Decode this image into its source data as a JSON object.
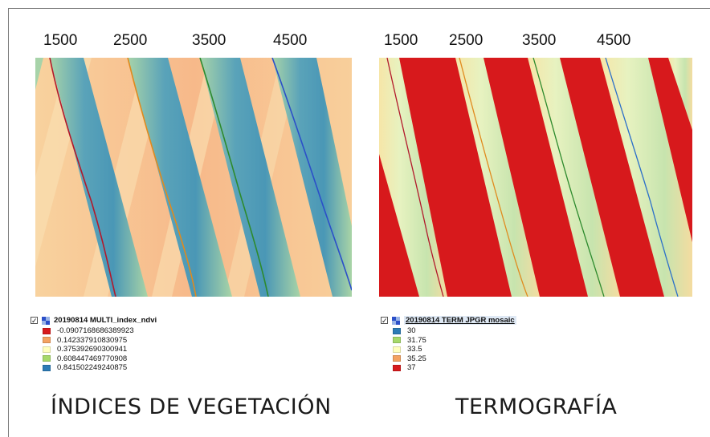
{
  "left_panel": {
    "ticks": [
      "1500",
      "2500",
      "3500",
      "4500"
    ],
    "legend": {
      "checked": "✓",
      "layer_name": "20190814 MULTI_index_ndvi",
      "items": [
        {
          "color": "#d7191c",
          "label": "-0.0907168686389923"
        },
        {
          "color": "#f4a261",
          "label": "0.142337910830975"
        },
        {
          "color": "#ffffbf",
          "label": "0.375392690300941"
        },
        {
          "color": "#a6d96a",
          "label": "0.608447469770908"
        },
        {
          "color": "#2c7bb6",
          "label": "0.841502249240875"
        }
      ]
    },
    "caption": "ÍNDICES DE VEGETACIÓN"
  },
  "right_panel": {
    "ticks": [
      "1500",
      "2500",
      "3500",
      "4500"
    ],
    "legend": {
      "checked": "✓",
      "layer_name": "20190814 TERM JPGR mosaic",
      "items": [
        {
          "color": "#2c7bb6",
          "label": "30"
        },
        {
          "color": "#a6d96a",
          "label": "31.75"
        },
        {
          "color": "#ffffbf",
          "label": "33.5"
        },
        {
          "color": "#f4a261",
          "label": "35.25"
        },
        {
          "color": "#d7191c",
          "label": "37"
        }
      ]
    },
    "caption": "TERMOGRAFÍA"
  },
  "colors": {
    "ndvi_low": "#f7b98a",
    "ndvi_mid": "#f9d9a6",
    "ndvi_high": "#4f9fb8",
    "ndvi_veg": "#8cc7a8",
    "thermal_hot": "#d7191c",
    "thermal_cool": "#e9f3c1",
    "thermal_green": "#bfe1a9",
    "line_1500": "#b2182b",
    "line_2500": "#e08a1e",
    "line_3500": "#2d8a2d",
    "line_4500": "#2b4fc9"
  }
}
